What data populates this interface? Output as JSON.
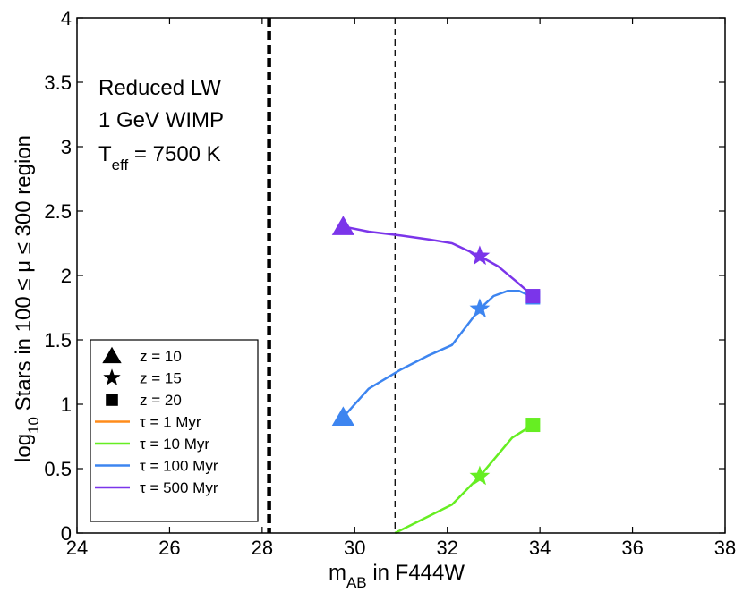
{
  "chart_data": {
    "type": "line",
    "xlim": [
      24,
      38
    ],
    "ylim": [
      0,
      4
    ],
    "xticks": [
      24,
      26,
      28,
      30,
      32,
      34,
      36,
      38
    ],
    "yticks": [
      0,
      0.5,
      1,
      1.5,
      2,
      2.5,
      3,
      3.5,
      4
    ],
    "xtick_labels": [
      "24",
      "26",
      "28",
      "30",
      "32",
      "34",
      "36",
      "38"
    ],
    "ytick_labels": [
      "0",
      "0.5",
      "1",
      "1.5",
      "2",
      "2.5",
      "3",
      "3.5",
      "4"
    ],
    "xlabel": {
      "main": "m",
      "sub": "AB",
      "rest": " in F444W"
    },
    "ylabel": {
      "main": "log",
      "sub": "10",
      "rest": " Stars in 100 ≤ μ ≤ 300 region"
    },
    "annotations": {
      "line1": "Reduced LW",
      "line2": "1 GeV WIMP",
      "line3_main": "T",
      "line3_sub": "eff",
      "line3_rest": " = 7500 K"
    },
    "vlines": [
      {
        "x": 28.15,
        "style": "thick-dashed",
        "color": "#000000"
      },
      {
        "x": 30.87,
        "style": "thin-dashed",
        "color": "#000000"
      }
    ],
    "series": [
      {
        "name": "τ = 1 Myr",
        "color": "#ff8c1a",
        "x": [],
        "y": [],
        "markers": []
      },
      {
        "name": "τ = 10 Myr",
        "color": "#66ee22",
        "x": [
          30.87,
          32.1,
          32.7,
          33.4,
          33.85
        ],
        "y": [
          0.0,
          0.22,
          0.44,
          0.74,
          0.84
        ],
        "markers": [
          {
            "x": 32.7,
            "y": 0.44,
            "shape": "star"
          },
          {
            "x": 33.85,
            "y": 0.84,
            "shape": "square"
          }
        ]
      },
      {
        "name": "τ = 100 Myr",
        "color": "#3d85f0",
        "x": [
          29.75,
          30.3,
          31.0,
          31.6,
          32.1,
          32.4,
          32.7,
          33.0,
          33.3,
          33.55,
          33.85
        ],
        "y": [
          0.9,
          1.12,
          1.27,
          1.38,
          1.46,
          1.6,
          1.74,
          1.84,
          1.88,
          1.88,
          1.83
        ],
        "markers": [
          {
            "x": 29.75,
            "y": 0.9,
            "shape": "triangle"
          },
          {
            "x": 32.7,
            "y": 1.74,
            "shape": "star"
          },
          {
            "x": 33.85,
            "y": 1.83,
            "shape": "square"
          }
        ]
      },
      {
        "name": "τ = 500 Myr",
        "color": "#7b35ea",
        "x": [
          29.75,
          30.3,
          31.0,
          31.6,
          32.1,
          32.4,
          32.7,
          33.1,
          33.5,
          33.85
        ],
        "y": [
          2.38,
          2.34,
          2.31,
          2.28,
          2.25,
          2.2,
          2.15,
          2.07,
          1.95,
          1.84
        ],
        "markers": [
          {
            "x": 29.75,
            "y": 2.38,
            "shape": "triangle"
          },
          {
            "x": 32.7,
            "y": 2.15,
            "shape": "star"
          },
          {
            "x": 33.85,
            "y": 1.84,
            "shape": "square"
          }
        ]
      }
    ],
    "legend": {
      "position": "bottom-left",
      "marker_entries": [
        {
          "shape": "triangle",
          "label": "z = 10"
        },
        {
          "shape": "star",
          "label": "z = 15"
        },
        {
          "shape": "square",
          "label": "z = 20"
        }
      ],
      "line_entries": [
        {
          "color": "#ff8c1a",
          "label": "τ = 1 Myr"
        },
        {
          "color": "#66ee22",
          "label": "τ = 10 Myr"
        },
        {
          "color": "#3d85f0",
          "label": "τ = 100 Myr"
        },
        {
          "color": "#7b35ea",
          "label": "τ = 500 Myr"
        }
      ]
    }
  }
}
